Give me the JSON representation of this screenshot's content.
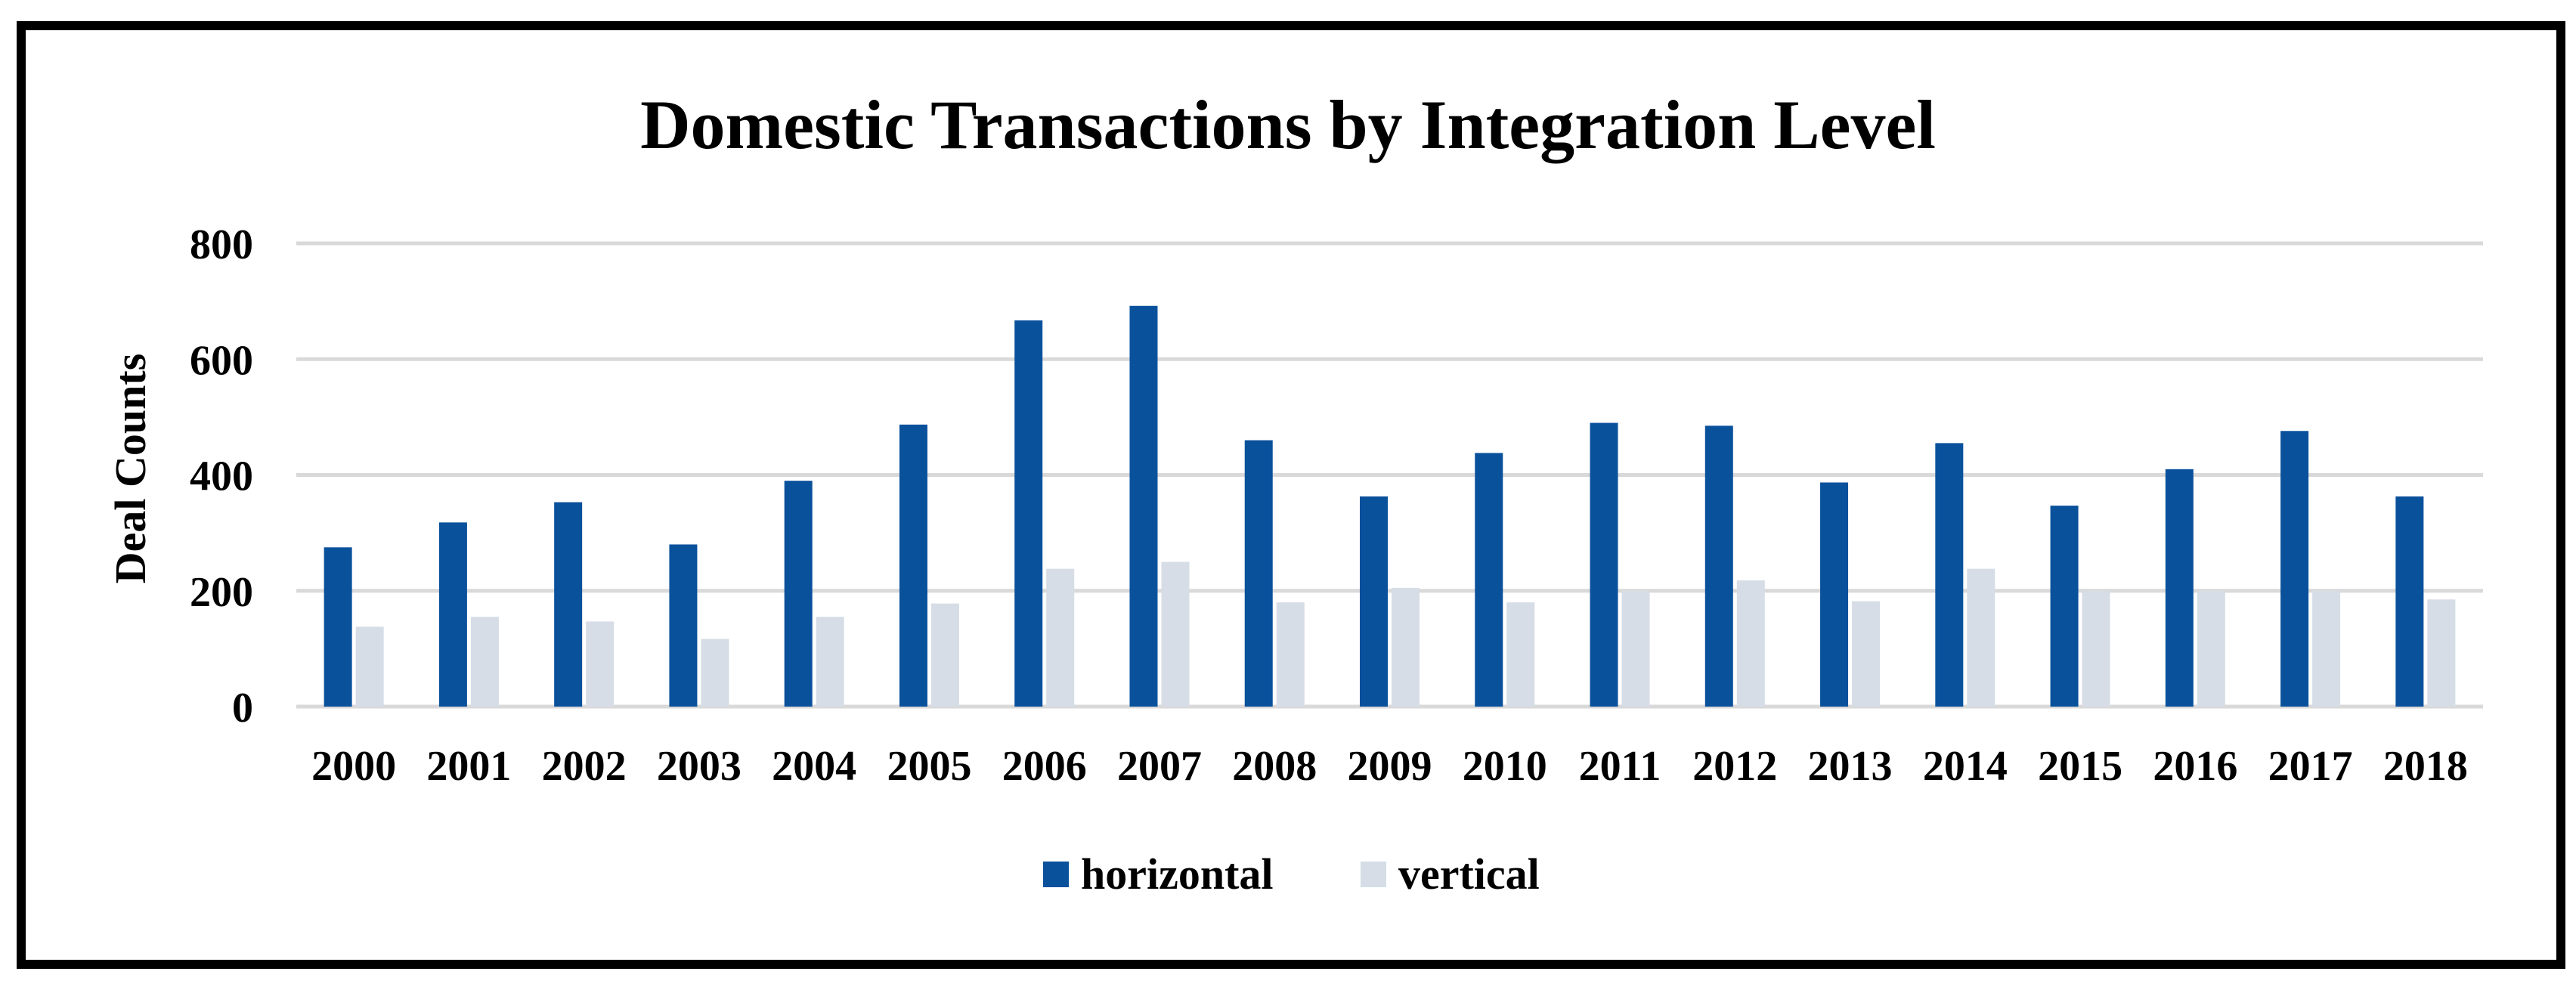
{
  "chart_data": {
    "type": "bar",
    "title": "Domestic Transactions by Integration Level",
    "ylabel": "Deal Counts",
    "xlabel": "",
    "ylim": [
      0,
      800
    ],
    "yticks": [
      0,
      200,
      400,
      600,
      800
    ],
    "grid": true,
    "legend_position": "bottom",
    "categories": [
      "2000",
      "2001",
      "2002",
      "2003",
      "2004",
      "2005",
      "2006",
      "2007",
      "2008",
      "2009",
      "2010",
      "2011",
      "2012",
      "2013",
      "2014",
      "2015",
      "2016",
      "2017",
      "2018"
    ],
    "series": [
      {
        "name": "horizontal",
        "color": "#0a519c",
        "values": [
          275,
          318,
          353,
          280,
          390,
          487,
          667,
          692,
          460,
          363,
          438,
          490,
          485,
          387,
          455,
          347,
          410,
          476,
          363
        ]
      },
      {
        "name": "vertical",
        "color": "#d6dde6",
        "values": [
          138,
          155,
          147,
          117,
          155,
          178,
          238,
          250,
          180,
          205,
          180,
          200,
          218,
          182,
          238,
          200,
          200,
          200,
          185
        ]
      }
    ]
  }
}
